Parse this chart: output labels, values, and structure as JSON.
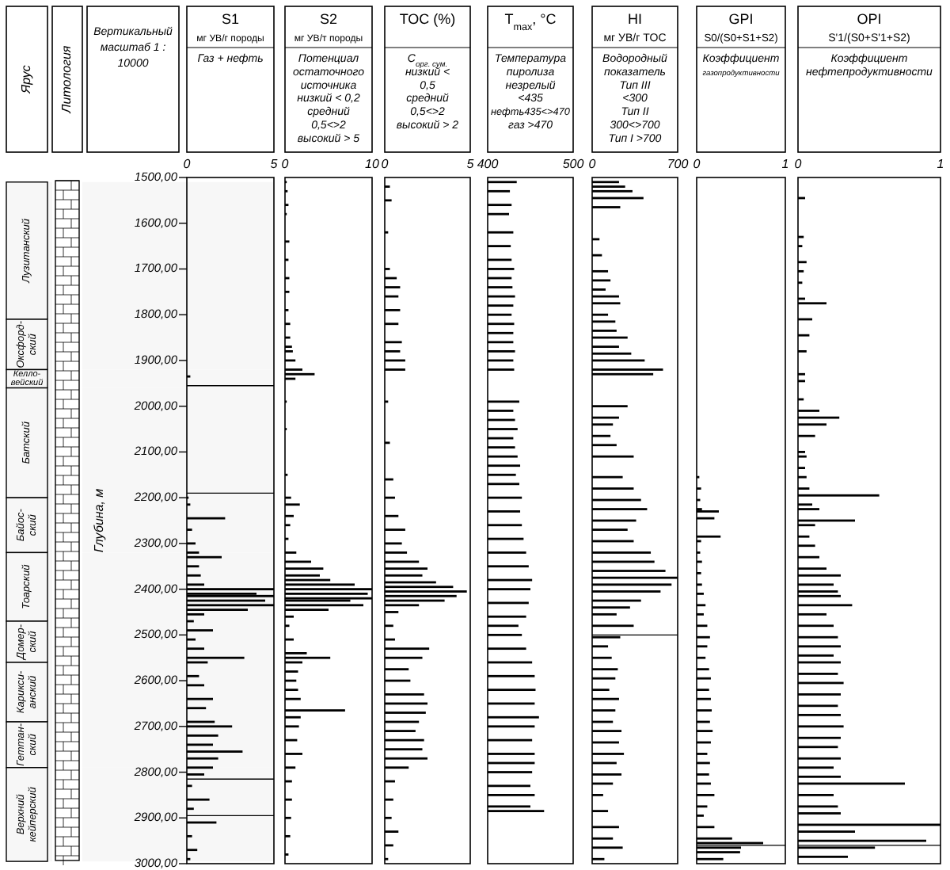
{
  "chart_data": [
    {
      "type": "other",
      "title": "Ярус"
    },
    {
      "type": "other",
      "title": "Литология"
    },
    {
      "type": "bar",
      "orientation": "horizontal",
      "title": "S1",
      "subtitle": "мг УВ/г породы",
      "ylabel": "Глубина, м",
      "annotations": [
        "Газ + нефть",
        {
          "text": "Вертикальный масштаб 1 : 10000"
        }
      ],
      "color": "#000000",
      "xlim": [
        0,
        5
      ],
      "xticks": [
        0,
        5
      ],
      "ylim": [
        3000,
        1500
      ],
      "yticks": [
        {
          "value": 1500,
          "label": "1500,00"
        },
        {
          "value": 1600,
          "label": "1600,00"
        },
        {
          "value": 1700,
          "label": "1700,00"
        },
        {
          "value": 1800,
          "label": "1800,00"
        },
        {
          "value": 1900,
          "label": "1900,00"
        },
        {
          "value": 2000,
          "label": "2000,00"
        },
        {
          "value": 2100,
          "label": "2100,00"
        },
        {
          "value": 2200,
          "label": "2200,00"
        },
        {
          "value": 2300,
          "label": "2300,00"
        },
        {
          "value": 2400,
          "label": "2400,00"
        },
        {
          "value": 2500,
          "label": "2500,00"
        },
        {
          "value": 2600,
          "label": "2600,00"
        },
        {
          "value": 2700,
          "label": "2700,00"
        },
        {
          "value": 2800,
          "label": "2800,00"
        },
        {
          "value": 2900,
          "label": "2900,00"
        },
        {
          "value": 3000,
          "label": "3000,00"
        }
      ],
      "bands": [
        {
          "axis": "y",
          "from": 1510,
          "to": 1810,
          "label": "Лузитанский"
        },
        {
          "axis": "y",
          "from": 1810,
          "to": 1920,
          "label": "Оксфорд-ский"
        },
        {
          "axis": "y",
          "from": 1920,
          "to": 1960,
          "label": "Келло-вейский"
        },
        {
          "axis": "y",
          "from": 1960,
          "to": 2200,
          "label": "Батский"
        },
        {
          "axis": "y",
          "from": 2200,
          "to": 2320,
          "label": "Байос-ский"
        },
        {
          "axis": "y",
          "from": 2320,
          "to": 2470,
          "label": "Тоарский"
        },
        {
          "axis": "y",
          "from": 2470,
          "to": 2560,
          "label": "Домер-ский"
        },
        {
          "axis": "y",
          "from": 2560,
          "to": 2690,
          "label": "Карикси-анский"
        },
        {
          "axis": "y",
          "from": 2690,
          "to": 2790,
          "label": "Геттан-ский"
        },
        {
          "axis": "y",
          "from": 2790,
          "to": 2995,
          "label": "Верхний кейперский"
        }
      ],
      "x": [
        1935,
        2200,
        2215,
        2245,
        2270,
        2300,
        2320,
        2330,
        2350,
        2370,
        2390,
        2400,
        2410,
        2415,
        2425,
        2435,
        2445,
        2455,
        2470,
        2490,
        2510,
        2530,
        2550,
        2560,
        2590,
        2610,
        2640,
        2660,
        2690,
        2700,
        2720,
        2740,
        2755,
        2770,
        2790,
        2805,
        2830,
        2860,
        2880,
        2910,
        2940,
        2970,
        2990
      ],
      "values": [
        0.2,
        0.1,
        0.2,
        2.2,
        0.3,
        0.5,
        0.7,
        2.0,
        0.7,
        0.8,
        1.0,
        5,
        4.0,
        5,
        4.5,
        5,
        3.5,
        1.0,
        0.4,
        1.5,
        0.5,
        1.0,
        3.3,
        1.2,
        0.7,
        1.0,
        1.5,
        1.1,
        1.6,
        2.6,
        1.8,
        1.5,
        3.2,
        1.8,
        1.5,
        1.0,
        0.3,
        1.3,
        0.4,
        1.7,
        0.3,
        0.6,
        0.2
      ],
      "ref_lines": [
        {
          "axis": "y",
          "value": 1955
        },
        {
          "axis": "y",
          "value": 2190
        },
        {
          "axis": "y",
          "value": 2815
        },
        {
          "axis": "y",
          "value": 2895
        }
      ]
    },
    {
      "type": "bar",
      "orientation": "horizontal",
      "title": "S2",
      "subtitle": "мг УВ/т породы",
      "annotations": [
        "Потенциал остаточного источника",
        "низкий < 0,2",
        "средний 0,5<>2",
        "высокий > 5"
      ],
      "color": "#000000",
      "xlim": [
        0,
        10
      ],
      "xticks": [
        0,
        10
      ],
      "ylim": [
        3000,
        1500
      ],
      "tick_labels": "x",
      "x": [
        1510,
        1530,
        1560,
        1580,
        1640,
        1680,
        1720,
        1750,
        1790,
        1820,
        1850,
        1870,
        1880,
        1900,
        1920,
        1930,
        1940,
        1990,
        2050,
        2150,
        2200,
        2215,
        2240,
        2260,
        2290,
        2320,
        2340,
        2355,
        2370,
        2380,
        2390,
        2400,
        2410,
        2420,
        2425,
        2435,
        2445,
        2460,
        2480,
        2510,
        2540,
        2550,
        2560,
        2580,
        2600,
        2620,
        2640,
        2665,
        2680,
        2700,
        2730,
        2760,
        2790,
        2820,
        2860,
        2900,
        2940,
        2980
      ],
      "values": [
        0.2,
        0.3,
        0.4,
        0.2,
        0.5,
        0.4,
        0.5,
        0.5,
        0.4,
        0.6,
        0.6,
        0.8,
        0.9,
        1.2,
        2.0,
        3.4,
        1.2,
        0.2,
        0.2,
        0.3,
        0.7,
        1.7,
        1.0,
        0.6,
        0.4,
        1.3,
        3.0,
        4.4,
        4.0,
        5.2,
        8.0,
        10,
        9.5,
        10,
        7.5,
        9.0,
        5.0,
        1.0,
        0.5,
        1.0,
        2.5,
        5.2,
        2.0,
        1.5,
        1.3,
        1.5,
        1.8,
        6.9,
        1.8,
        1.6,
        1.4,
        2.0,
        1.2,
        0.8,
        0.8,
        0.7,
        0.6,
        0.4
      ]
    },
    {
      "type": "bar",
      "orientation": "horizontal",
      "title": "TOC (%)",
      "annotations": [
        "C$_{орг. сум.}$",
        "низкий < 0,5",
        "средний 0,5<>2",
        "высокий > 2"
      ],
      "color": "#000000",
      "xlim": [
        0,
        5
      ],
      "xticks": [
        0,
        5
      ],
      "ylim": [
        3000,
        1500
      ],
      "tick_labels": "x",
      "x": [
        1520,
        1550,
        1620,
        1700,
        1720,
        1740,
        1760,
        1790,
        1820,
        1860,
        1880,
        1900,
        1920,
        1990,
        2080,
        2160,
        2200,
        2240,
        2270,
        2300,
        2320,
        2340,
        2355,
        2370,
        2385,
        2395,
        2405,
        2415,
        2425,
        2435,
        2450,
        2480,
        2510,
        2530,
        2550,
        2575,
        2600,
        2630,
        2650,
        2670,
        2690,
        2710,
        2730,
        2750,
        2770,
        2790,
        2820,
        2860,
        2900,
        2930,
        2960,
        2990
      ],
      "values": [
        0.3,
        0.4,
        0.2,
        0.3,
        0.7,
        0.9,
        0.8,
        0.9,
        0.8,
        1.0,
        0.9,
        1.2,
        1.2,
        0.2,
        0.3,
        0.5,
        0.6,
        0.8,
        1.2,
        1.0,
        1.3,
        2.0,
        2.5,
        2.2,
        3.0,
        4.0,
        4.8,
        4.2,
        3.5,
        2.0,
        0.8,
        0.5,
        0.6,
        2.6,
        2.2,
        1.4,
        1.5,
        2.3,
        2.5,
        2.4,
        2.0,
        1.8,
        2.3,
        2.2,
        2.5,
        1.4,
        0.6,
        0.5,
        0.4,
        0.8,
        0.5,
        0.2
      ]
    },
    {
      "type": "bar",
      "orientation": "horizontal",
      "title": "T$_{max}$, °C",
      "annotations": [
        "Температура пиролиза",
        "незрелый <435",
        "нефть435<>470",
        "газ >470"
      ],
      "color": "#000000",
      "xlim": [
        400,
        500
      ],
      "xticks": [
        400,
        500
      ],
      "ylim": [
        3000,
        1500
      ],
      "tick_labels": "x",
      "x": [
        1510,
        1530,
        1560,
        1580,
        1620,
        1650,
        1680,
        1700,
        1720,
        1740,
        1760,
        1780,
        1800,
        1820,
        1840,
        1860,
        1880,
        1900,
        1920,
        1990,
        2010,
        2030,
        2050,
        2070,
        2090,
        2110,
        2130,
        2150,
        2170,
        2200,
        2230,
        2260,
        2290,
        2320,
        2350,
        2380,
        2400,
        2430,
        2460,
        2480,
        2500,
        2530,
        2560,
        2590,
        2620,
        2650,
        2680,
        2700,
        2730,
        2760,
        2780,
        2800,
        2830,
        2850,
        2875,
        2885
      ],
      "values": [
        434,
        426,
        428,
        425,
        430,
        427,
        428,
        431,
        428,
        429,
        432,
        430,
        428,
        431,
        430,
        430,
        432,
        430,
        431,
        437,
        430,
        432,
        435,
        430,
        432,
        435,
        438,
        433,
        437,
        440,
        438,
        440,
        442,
        445,
        448,
        452,
        450,
        448,
        445,
        436,
        440,
        445,
        452,
        455,
        456,
        455,
        460,
        455,
        452,
        455,
        455,
        452,
        450,
        455,
        450,
        466
      ]
    },
    {
      "type": "bar",
      "orientation": "horizontal",
      "title": "HI",
      "subtitle": "мг УВ/г TOC",
      "annotations": [
        "Водородный показатель",
        "Тип III <300",
        "Тип II 300<>700",
        "Тип I >700"
      ],
      "color": "#000000",
      "xlim": [
        0,
        700
      ],
      "xticks": [
        0,
        700
      ],
      "ylim": [
        3000,
        1500
      ],
      "tick_labels": "x",
      "x": [
        1510,
        1520,
        1530,
        1545,
        1565,
        1635,
        1670,
        1705,
        1725,
        1745,
        1760,
        1775,
        1800,
        1815,
        1835,
        1850,
        1870,
        1885,
        1900,
        1920,
        1930,
        2000,
        2025,
        2040,
        2065,
        2085,
        2110,
        2155,
        2180,
        2205,
        2225,
        2250,
        2270,
        2295,
        2320,
        2340,
        2360,
        2375,
        2390,
        2405,
        2425,
        2440,
        2455,
        2480,
        2505,
        2525,
        2550,
        2575,
        2595,
        2620,
        2640,
        2665,
        2690,
        2710,
        2735,
        2760,
        2780,
        2805,
        2825,
        2850,
        2885,
        2920,
        2945,
        2965,
        2990
      ],
      "values": [
        220,
        270,
        330,
        420,
        230,
        60,
        80,
        130,
        150,
        110,
        220,
        230,
        130,
        190,
        200,
        290,
        220,
        320,
        430,
        580,
        500,
        290,
        220,
        170,
        150,
        200,
        340,
        250,
        340,
        400,
        450,
        360,
        290,
        340,
        480,
        510,
        600,
        700,
        650,
        560,
        400,
        310,
        200,
        340,
        230,
        130,
        160,
        210,
        190,
        140,
        220,
        190,
        170,
        240,
        220,
        260,
        200,
        240,
        170,
        90,
        130,
        220,
        170,
        250,
        100
      ],
      "ref_lines": [
        {
          "axis": "y",
          "value": 2500
        }
      ]
    },
    {
      "type": "bar",
      "orientation": "horizontal",
      "title": "GPI",
      "subtitle": "S0/(S0+S1+S2)",
      "annotations": [
        "Коэффициент газопродуктивности"
      ],
      "color": "#000000",
      "xlim": [
        0,
        1
      ],
      "xticks": [
        0,
        1
      ],
      "ylim": [
        3000,
        1500
      ],
      "tick_labels": "x",
      "x": [
        2155,
        2180,
        2205,
        2225,
        2230,
        2245,
        2285,
        2295,
        2320,
        2340,
        2365,
        2390,
        2410,
        2435,
        2455,
        2480,
        2505,
        2525,
        2550,
        2575,
        2595,
        2620,
        2640,
        2665,
        2690,
        2710,
        2735,
        2760,
        2780,
        2805,
        2825,
        2850,
        2875,
        2895,
        2920,
        2945,
        2955,
        2965,
        2975,
        2990
      ],
      "values": [
        0.03,
        0.05,
        0.04,
        0.06,
        0.25,
        0.2,
        0.27,
        0.05,
        0.04,
        0.06,
        0.05,
        0.06,
        0.08,
        0.1,
        0.08,
        0.12,
        0.15,
        0.12,
        0.1,
        0.14,
        0.16,
        0.14,
        0.16,
        0.17,
        0.15,
        0.18,
        0.16,
        0.12,
        0.15,
        0.14,
        0.16,
        0.2,
        0.12,
        0.08,
        0.2,
        0.4,
        0.75,
        0.5,
        0.49,
        0.3
      ],
      "ref_lines": [
        {
          "axis": "y",
          "value": 2960
        }
      ]
    },
    {
      "type": "bar",
      "orientation": "horizontal",
      "title": "OPI",
      "subtitle": "S'1/(S0+S'1+S2)",
      "annotations": [
        "Коэффициент нефтепродуктивности"
      ],
      "color": "#000000",
      "xlim": [
        0,
        1
      ],
      "xticks": [
        0,
        1
      ],
      "ylim": [
        3000,
        1500
      ],
      "tick_labels": "x",
      "x": [
        1545,
        1630,
        1650,
        1685,
        1705,
        1730,
        1765,
        1775,
        1810,
        1845,
        1880,
        1930,
        1945,
        1985,
        2010,
        2025,
        2040,
        2065,
        2100,
        2110,
        2135,
        2155,
        2180,
        2195,
        2215,
        2225,
        2250,
        2260,
        2285,
        2305,
        2330,
        2355,
        2370,
        2390,
        2405,
        2415,
        2435,
        2455,
        2480,
        2505,
        2525,
        2545,
        2560,
        2585,
        2605,
        2630,
        2655,
        2675,
        2700,
        2725,
        2745,
        2770,
        2790,
        2810,
        2825,
        2850,
        2875,
        2890,
        2915,
        2930,
        2950,
        2965,
        2985
      ],
      "values": [
        0.05,
        0.04,
        0.03,
        0.06,
        0.04,
        0.03,
        0.05,
        0.2,
        0.1,
        0.08,
        0.06,
        0.05,
        0.05,
        0.04,
        0.15,
        0.29,
        0.2,
        0.12,
        0.05,
        0.06,
        0.05,
        0.06,
        0.08,
        0.57,
        0.1,
        0.15,
        0.4,
        0.12,
        0.08,
        0.12,
        0.15,
        0.2,
        0.3,
        0.25,
        0.28,
        0.3,
        0.38,
        0.2,
        0.25,
        0.28,
        0.3,
        0.25,
        0.3,
        0.28,
        0.32,
        0.3,
        0.28,
        0.3,
        0.32,
        0.3,
        0.28,
        0.3,
        0.25,
        0.3,
        0.75,
        0.25,
        0.28,
        0.3,
        1,
        0.4,
        0.9,
        0.54,
        0.35
      ],
      "ref_lines": [
        {
          "axis": "y",
          "value": 2960
        }
      ]
    }
  ]
}
